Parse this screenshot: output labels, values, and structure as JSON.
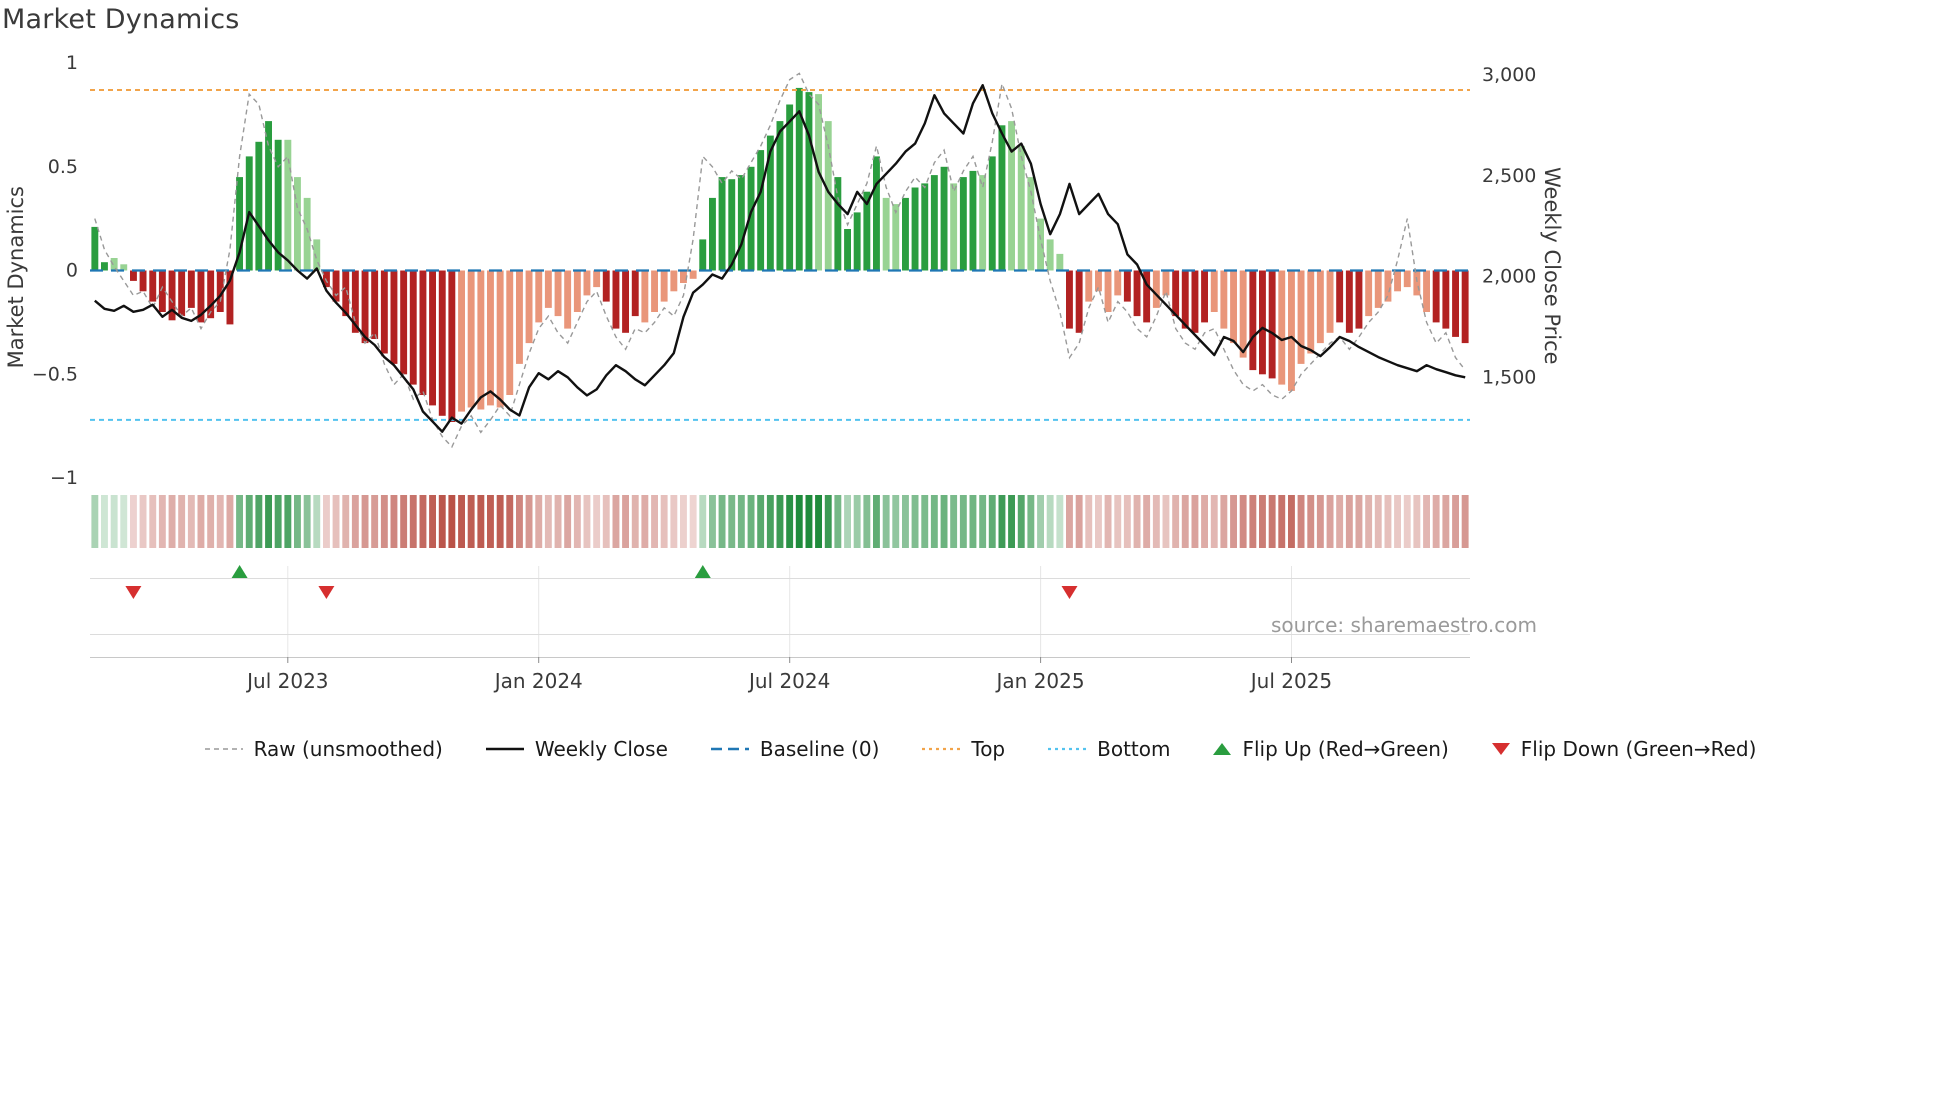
{
  "title": "Market Dynamics",
  "source": "source: sharemaestro.com",
  "chart_data": {
    "type": "combo",
    "title": "Market Dynamics",
    "left_axis": {
      "label": "Market Dynamics",
      "lim": [
        -1,
        1
      ],
      "ticks": [
        {
          "v": 1,
          "label": "1"
        },
        {
          "v": 0.5,
          "label": "0.5"
        },
        {
          "v": 0,
          "label": "0"
        },
        {
          "v": -0.5,
          "label": "−0.5"
        },
        {
          "v": -1,
          "label": "−1"
        }
      ]
    },
    "right_axis": {
      "label": "Weekly Close Price",
      "lim": [
        1000,
        3060
      ],
      "ticks": [
        {
          "v": 3000,
          "label": "3,000"
        },
        {
          "v": 2500,
          "label": "2,500"
        },
        {
          "v": 2000,
          "label": "2,000"
        },
        {
          "v": 1500,
          "label": "1,500"
        }
      ]
    },
    "x_ticks": [
      {
        "i": 20,
        "label": "Jul 2023"
      },
      {
        "i": 46,
        "label": "Jan 2024"
      },
      {
        "i": 72,
        "label": "Jul 2024"
      },
      {
        "i": 98,
        "label": "Jan 2025"
      },
      {
        "i": 124,
        "label": "Jul 2025"
      }
    ],
    "reference_lines": {
      "baseline": 0,
      "top": 0.87,
      "bottom": -0.72
    },
    "colors": {
      "dg": "#2a9d3f",
      "lg": "#98d393",
      "dr": "#b22222",
      "lr": "#e9967a",
      "heat_pos": "#1f8b3b",
      "heat_neg": "#b03a2e",
      "baseline": "#1f77b4",
      "top": "#f2a44a",
      "bottom": "#53c3ef",
      "raw": "#999999",
      "close": "#111111",
      "flip_up": "#2a9d3f",
      "flip_down": "#d62f2f"
    },
    "oscillator": {
      "values": [
        0.21,
        0.04,
        0.06,
        0.03,
        -0.05,
        -0.1,
        -0.15,
        -0.2,
        -0.24,
        -0.22,
        -0.18,
        -0.25,
        -0.23,
        -0.2,
        -0.26,
        0.45,
        0.55,
        0.62,
        0.72,
        0.63,
        0.63,
        0.45,
        0.35,
        0.15,
        -0.08,
        -0.15,
        -0.22,
        -0.3,
        -0.35,
        -0.33,
        -0.4,
        -0.45,
        -0.5,
        -0.55,
        -0.6,
        -0.65,
        -0.7,
        -0.73,
        -0.68,
        -0.66,
        -0.67,
        -0.65,
        -0.66,
        -0.6,
        -0.45,
        -0.35,
        -0.25,
        -0.18,
        -0.22,
        -0.28,
        -0.2,
        -0.12,
        -0.08,
        -0.15,
        -0.28,
        -0.3,
        -0.22,
        -0.25,
        -0.2,
        -0.15,
        -0.1,
        -0.06,
        -0.04,
        0.15,
        0.35,
        0.45,
        0.44,
        0.46,
        0.5,
        0.58,
        0.65,
        0.72,
        0.8,
        0.88,
        0.86,
        0.85,
        0.72,
        0.45,
        0.2,
        0.28,
        0.38,
        0.55,
        0.35,
        0.32,
        0.35,
        0.4,
        0.42,
        0.46,
        0.5,
        0.42,
        0.45,
        0.48,
        0.46,
        0.55,
        0.7,
        0.72,
        0.6,
        0.45,
        0.25,
        0.15,
        0.08,
        -0.28,
        -0.3,
        -0.15,
        -0.1,
        -0.2,
        -0.12,
        -0.15,
        -0.22,
        -0.25,
        -0.18,
        -0.12,
        -0.22,
        -0.28,
        -0.3,
        -0.25,
        -0.2,
        -0.28,
        -0.35,
        -0.42,
        -0.48,
        -0.5,
        -0.52,
        -0.55,
        -0.58,
        -0.45,
        -0.4,
        -0.35,
        -0.3,
        -0.25,
        -0.3,
        -0.28,
        -0.22,
        -0.18,
        -0.15,
        -0.1,
        -0.08,
        -0.12,
        -0.2,
        -0.25,
        -0.28,
        -0.32,
        -0.35
      ],
      "classes": [
        "dg",
        "dg",
        "lg",
        "lg",
        "dr",
        "dr",
        "dr",
        "dr",
        "dr",
        "dr",
        "dr",
        "dr",
        "dr",
        "dr",
        "dr",
        "dg",
        "dg",
        "dg",
        "dg",
        "dg",
        "lg",
        "lg",
        "lg",
        "lg",
        "dr",
        "dr",
        "dr",
        "dr",
        "dr",
        "dr",
        "dr",
        "dr",
        "dr",
        "dr",
        "dr",
        "dr",
        "dr",
        "dr",
        "lr",
        "lr",
        "lr",
        "lr",
        "lr",
        "lr",
        "lr",
        "lr",
        "lr",
        "lr",
        "lr",
        "lr",
        "lr",
        "lr",
        "lr",
        "dr",
        "dr",
        "dr",
        "dr",
        "lr",
        "lr",
        "lr",
        "lr",
        "lr",
        "lr",
        "dg",
        "dg",
        "dg",
        "dg",
        "dg",
        "dg",
        "dg",
        "dg",
        "dg",
        "dg",
        "dg",
        "dg",
        "lg",
        "lg",
        "dg",
        "dg",
        "dg",
        "dg",
        "dg",
        "lg",
        "lg",
        "dg",
        "dg",
        "dg",
        "dg",
        "dg",
        "lg",
        "dg",
        "dg",
        "lg",
        "dg",
        "dg",
        "lg",
        "lg",
        "lg",
        "lg",
        "lg",
        "lg",
        "dr",
        "dr",
        "lr",
        "lr",
        "lr",
        "lr",
        "dr",
        "dr",
        "dr",
        "lr",
        "lr",
        "dr",
        "dr",
        "dr",
        "dr",
        "lr",
        "lr",
        "lr",
        "lr",
        "dr",
        "dr",
        "dr",
        "lr",
        "lr",
        "lr",
        "lr",
        "lr",
        "lr",
        "dr",
        "dr",
        "dr",
        "lr",
        "lr",
        "lr",
        "lr",
        "lr",
        "lr",
        "lr",
        "dr",
        "dr",
        "dr",
        "dr"
      ]
    },
    "raw": [
      0.25,
      0.1,
      0.02,
      -0.05,
      -0.12,
      -0.1,
      -0.18,
      -0.08,
      -0.15,
      -0.22,
      -0.18,
      -0.28,
      -0.2,
      -0.15,
      0.1,
      0.55,
      0.85,
      0.8,
      0.6,
      0.5,
      0.55,
      0.3,
      0.2,
      0.05,
      -0.05,
      -0.12,
      -0.08,
      -0.25,
      -0.35,
      -0.3,
      -0.45,
      -0.55,
      -0.5,
      -0.62,
      -0.58,
      -0.72,
      -0.8,
      -0.85,
      -0.75,
      -0.7,
      -0.78,
      -0.72,
      -0.65,
      -0.7,
      -0.55,
      -0.4,
      -0.28,
      -0.22,
      -0.3,
      -0.35,
      -0.25,
      -0.15,
      -0.1,
      -0.22,
      -0.32,
      -0.38,
      -0.28,
      -0.3,
      -0.25,
      -0.18,
      -0.22,
      -0.12,
      0.15,
      0.55,
      0.5,
      0.42,
      0.48,
      0.44,
      0.52,
      0.6,
      0.7,
      0.82,
      0.92,
      0.95,
      0.85,
      0.8,
      0.6,
      0.35,
      0.22,
      0.32,
      0.42,
      0.6,
      0.4,
      0.28,
      0.38,
      0.45,
      0.4,
      0.52,
      0.58,
      0.38,
      0.48,
      0.55,
      0.4,
      0.62,
      0.9,
      0.78,
      0.55,
      0.38,
      0.15,
      -0.05,
      -0.2,
      -0.42,
      -0.35,
      -0.18,
      -0.08,
      -0.25,
      -0.15,
      -0.2,
      -0.28,
      -0.32,
      -0.22,
      -0.1,
      -0.28,
      -0.35,
      -0.38,
      -0.3,
      -0.28,
      -0.38,
      -0.48,
      -0.55,
      -0.58,
      -0.55,
      -0.6,
      -0.62,
      -0.58,
      -0.5,
      -0.45,
      -0.4,
      -0.35,
      -0.32,
      -0.38,
      -0.32,
      -0.25,
      -0.2,
      -0.12,
      0.05,
      0.25,
      -0.05,
      -0.25,
      -0.35,
      -0.3,
      -0.42,
      -0.48
    ],
    "weekly_close": [
      1880,
      1840,
      1830,
      1855,
      1825,
      1835,
      1860,
      1800,
      1835,
      1795,
      1780,
      1810,
      1855,
      1905,
      1980,
      2120,
      2320,
      2250,
      2180,
      2120,
      2080,
      2030,
      1990,
      2040,
      1930,
      1870,
      1820,
      1760,
      1700,
      1660,
      1600,
      1560,
      1500,
      1440,
      1330,
      1280,
      1230,
      1300,
      1270,
      1340,
      1400,
      1430,
      1390,
      1340,
      1310,
      1450,
      1520,
      1490,
      1530,
      1500,
      1450,
      1410,
      1440,
      1510,
      1560,
      1530,
      1490,
      1460,
      1510,
      1560,
      1620,
      1800,
      1920,
      1960,
      2010,
      1990,
      2060,
      2160,
      2320,
      2420,
      2620,
      2720,
      2770,
      2820,
      2700,
      2520,
      2420,
      2360,
      2310,
      2420,
      2360,
      2460,
      2510,
      2560,
      2620,
      2660,
      2760,
      2900,
      2810,
      2760,
      2710,
      2860,
      2950,
      2810,
      2710,
      2620,
      2660,
      2560,
      2360,
      2210,
      2310,
      2460,
      2310,
      2360,
      2410,
      2310,
      2260,
      2110,
      2060,
      1960,
      1910,
      1860,
      1810,
      1760,
      1710,
      1660,
      1610,
      1700,
      1680,
      1625,
      1700,
      1745,
      1720,
      1685,
      1700,
      1655,
      1635,
      1605,
      1650,
      1700,
      1680,
      1650,
      1625,
      1600,
      1580,
      1560,
      1545,
      1530,
      1560,
      1540,
      1525,
      1510,
      1500
    ],
    "flip_up_indices": [
      15,
      63
    ],
    "flip_down_indices": [
      4,
      24,
      101
    ],
    "legend": [
      {
        "label": "Raw (unsmoothed)"
      },
      {
        "label": "Weekly Close"
      },
      {
        "label": "Baseline (0)"
      },
      {
        "label": "Top"
      },
      {
        "label": "Bottom"
      },
      {
        "label": "Flip Up (Red→Green)"
      },
      {
        "label": "Flip Down (Green→Red)"
      }
    ]
  }
}
